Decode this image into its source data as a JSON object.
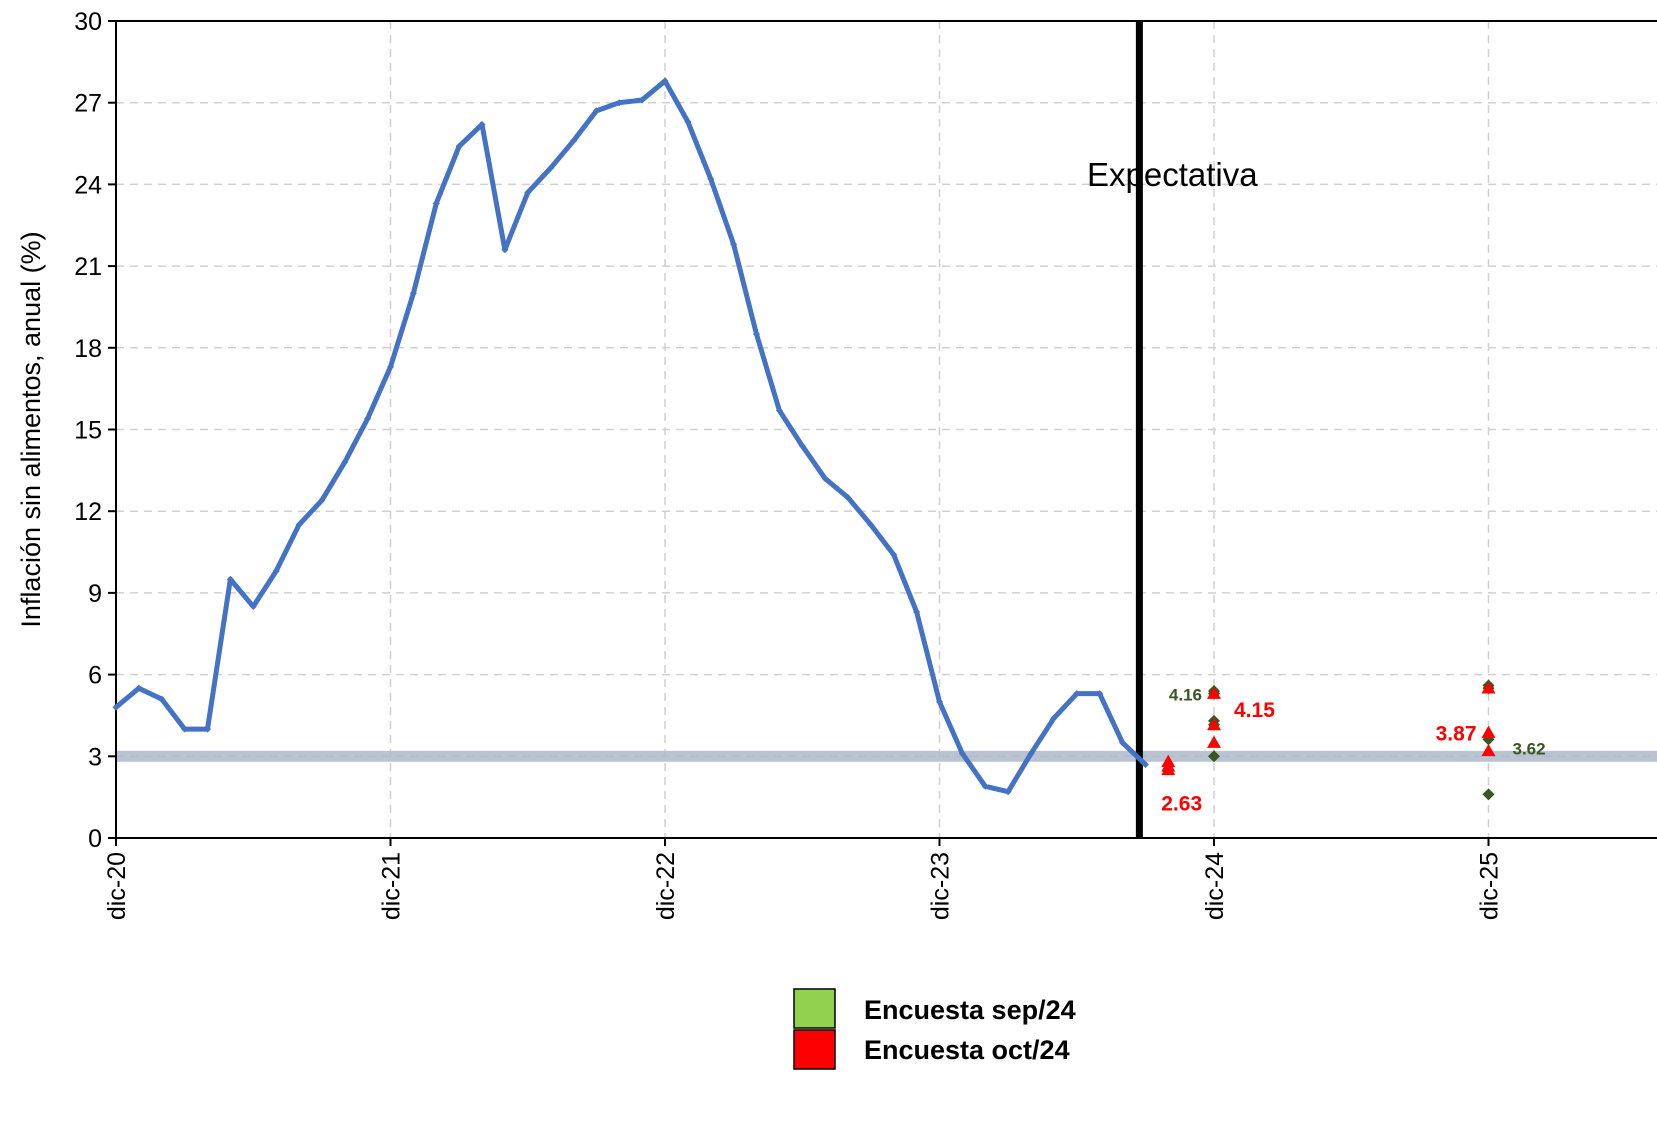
{
  "chart_data": {
    "type": "line",
    "ylabel": "Inflación  sin alimentos, anual (%)",
    "ylim": [
      0,
      30
    ],
    "yticks": [
      0,
      3,
      6,
      9,
      12,
      15,
      18,
      21,
      24,
      27,
      30
    ],
    "xlim": [
      "dic-20",
      "abr-26"
    ],
    "xticks": [
      "dic-20",
      "dic-21",
      "dic-22",
      "dic-23",
      "dic-24",
      "dic-25"
    ],
    "grid": true,
    "forecast_divider": "sep-24",
    "annotation": "Expectativa",
    "target_band": [
      2.8,
      3.2
    ],
    "colors": {
      "history": "#4472C4",
      "survey_sep": "#385723",
      "survey_oct": "#FF0000",
      "legend_sep": "#92D050",
      "legend_oct": "#FF0000",
      "band": "#ADB9CA"
    },
    "history": {
      "x": [
        "dic-20",
        "ene-21",
        "feb-21",
        "mar-21",
        "abr-21",
        "may-21",
        "jun-21",
        "jul-21",
        "ago-21",
        "sep-21",
        "oct-21",
        "nov-21",
        "dic-21",
        "ene-22",
        "feb-22",
        "mar-22",
        "abr-22",
        "may-22",
        "jun-22",
        "jul-22",
        "ago-22",
        "sep-22",
        "oct-22",
        "nov-22",
        "dic-22",
        "ene-23",
        "feb-23",
        "mar-23",
        "abr-23",
        "may-23",
        "jun-23",
        "jul-23",
        "ago-23",
        "sep-23",
        "oct-23",
        "nov-23",
        "dic-23",
        "ene-24",
        "feb-24",
        "mar-24",
        "abr-24",
        "may-24",
        "jun-24",
        "jul-24",
        "ago-24",
        "sep-24"
      ],
      "values": [
        4.8,
        5.5,
        5.1,
        4.0,
        4.0,
        9.5,
        8.5,
        9.8,
        11.5,
        12.4,
        13.8,
        15.4,
        17.3,
        20.0,
        23.3,
        25.4,
        26.2,
        21.6,
        23.7,
        24.6,
        25.6,
        26.7,
        27.0,
        27.1,
        27.8,
        26.3,
        24.2,
        21.8,
        18.5,
        15.7,
        14.4,
        13.2,
        12.5,
        11.5,
        10.4,
        8.3,
        5.0,
        3.1,
        1.9,
        1.7,
        3.1,
        4.4,
        5.3,
        5.3,
        3.5,
        2.7
      ]
    },
    "survey_sep": {
      "name": "Encuesta sep/24",
      "points": [
        {
          "x": "dic-24",
          "values": [
            5.4,
            5.3,
            4.3,
            4.16,
            3.0
          ]
        },
        {
          "x": "dic-25",
          "values": [
            5.6,
            5.5,
            3.62,
            1.6
          ]
        }
      ]
    },
    "survey_oct": {
      "name": "Encuesta oct/24",
      "points": [
        {
          "x": "oct-24",
          "values": [
            2.8,
            2.63,
            2.5
          ]
        },
        {
          "x": "dic-24",
          "values": [
            5.3,
            4.15,
            3.5
          ]
        },
        {
          "x": "dic-25",
          "values": [
            5.5,
            3.87,
            3.2
          ]
        }
      ]
    },
    "data_labels": [
      {
        "text": "4.16",
        "series": "survey_sep",
        "x": "dic-24",
        "y": 4.16
      },
      {
        "text": "4.15",
        "series": "survey_oct",
        "x": "dic-24",
        "y": 4.15
      },
      {
        "text": "2.63",
        "series": "survey_oct",
        "x": "oct-24",
        "y": 2.63
      },
      {
        "text": "3.87",
        "series": "survey_oct",
        "x": "dic-25",
        "y": 3.87
      },
      {
        "text": "3.62",
        "series": "survey_sep",
        "x": "dic-25",
        "y": 3.62
      }
    ]
  }
}
